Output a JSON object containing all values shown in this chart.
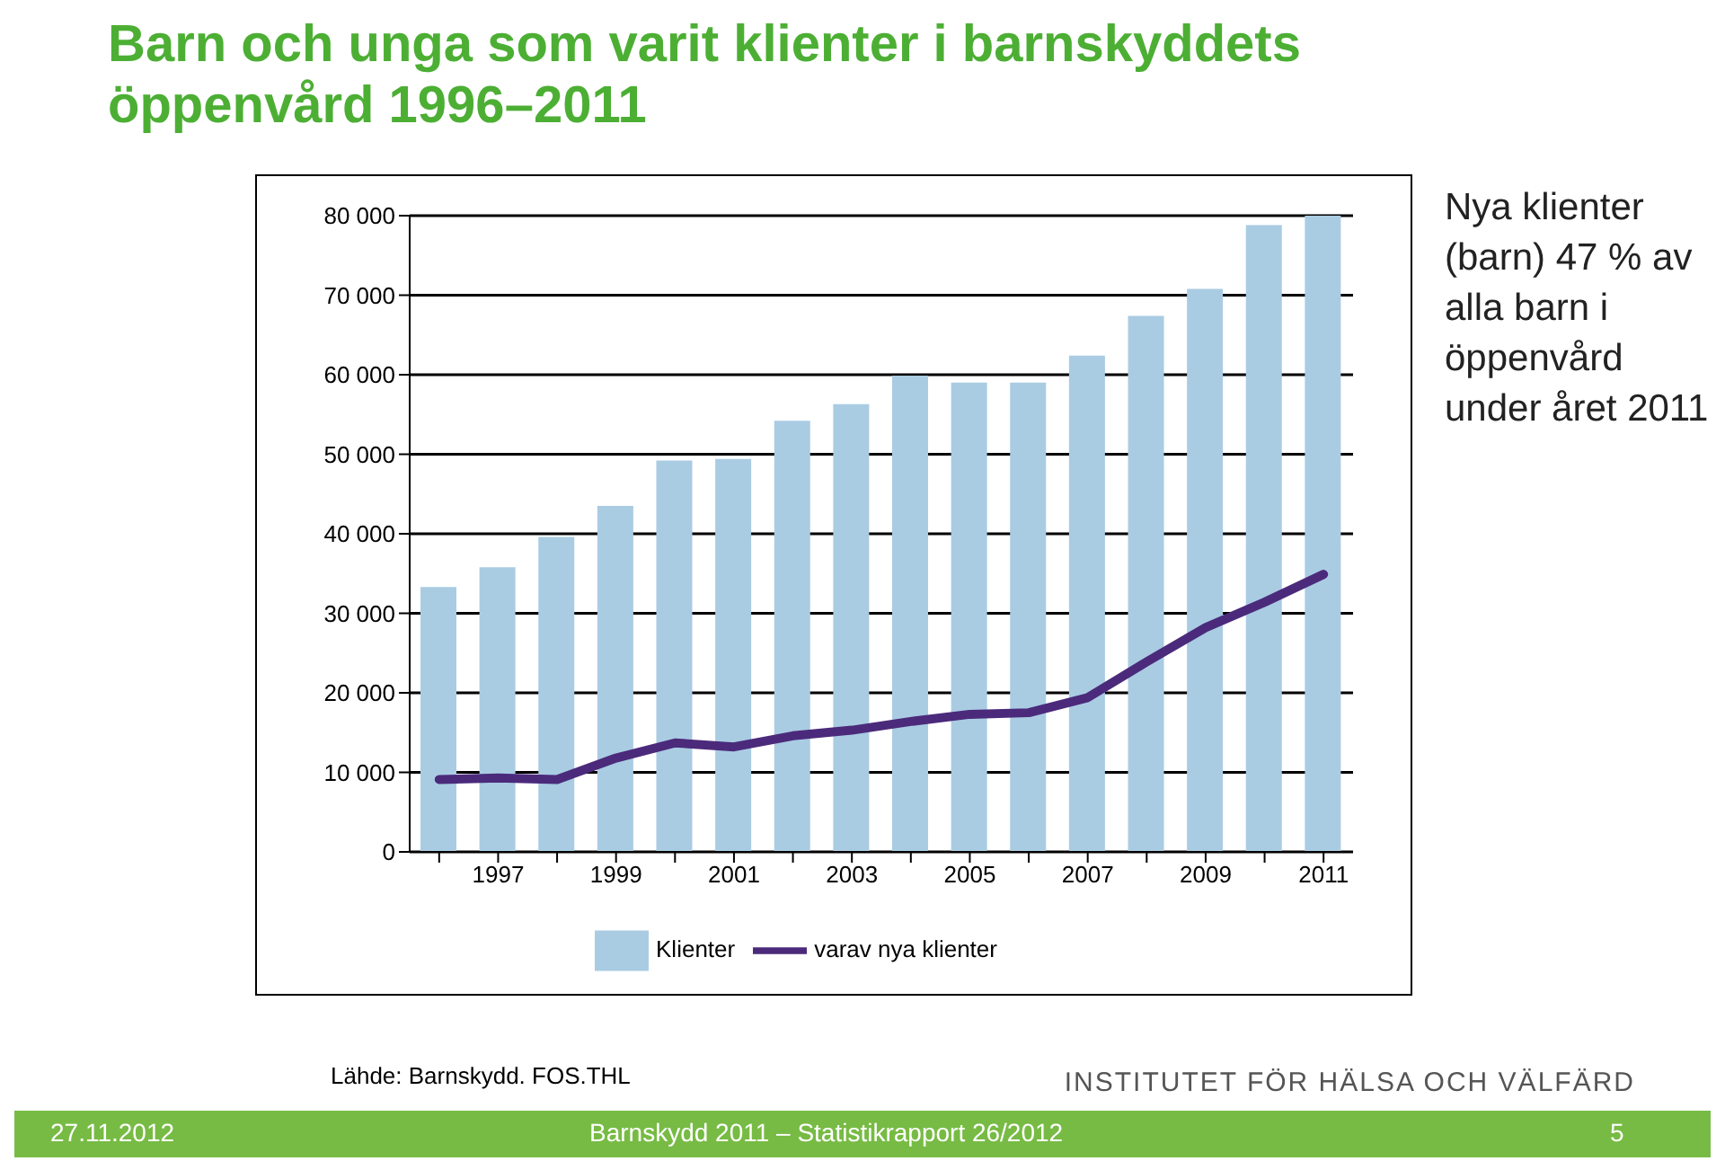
{
  "chart_data": {
    "type": "bar",
    "title": "Barn och unga som varit klienter i barnskyddets öppenvård 1996–2011",
    "categories": [
      null,
      "1997",
      null,
      "1999",
      null,
      "2001",
      null,
      "2003",
      null,
      "2005",
      null,
      "2007",
      null,
      "2009",
      null,
      "2011"
    ],
    "series": [
      {
        "name": "Klienter",
        "color": "#a9cce3",
        "values": [
          33300,
          35800,
          39600,
          43500,
          49200,
          49400,
          54200,
          56300,
          59900,
          59000,
          59000,
          62400,
          67400,
          70800,
          78800,
          80000
        ]
      },
      {
        "name": "varav nya klienter",
        "type": "line",
        "color": "#4b2a7b",
        "values": [
          9100,
          9300,
          9100,
          11800,
          13700,
          13200,
          14600,
          15300,
          16400,
          17300,
          17500,
          19400,
          23900,
          28200,
          31400,
          34900
        ]
      }
    ],
    "ylim": [
      0,
      80000
    ],
    "yticks": [
      {
        "value": 0,
        "label": "0"
      },
      {
        "value": 10000,
        "label": "10 000"
      },
      {
        "value": 20000,
        "label": "20 000"
      },
      {
        "value": 30000,
        "label": "30 000"
      },
      {
        "value": 40000,
        "label": "40 000"
      },
      {
        "value": 50000,
        "label": "50 000"
      },
      {
        "value": 60000,
        "label": "60 000"
      },
      {
        "value": 70000,
        "label": "70 000"
      },
      {
        "value": 80000,
        "label": "80 000"
      }
    ],
    "grid": "y",
    "legend": "bottom",
    "marker": "none",
    "annotations": [
      "Nya klienter (barn) 47 % av alla barn i öppenvård under året 2011",
      "Lähde: Barnskydd. FOS.THL",
      "INSTITUTET FÖR HÄLSA OCH VÄLFÄRD",
      "27.11.2012",
      "Barnskydd 2011 – Statistikrapport 26/2012",
      "5"
    ]
  }
}
